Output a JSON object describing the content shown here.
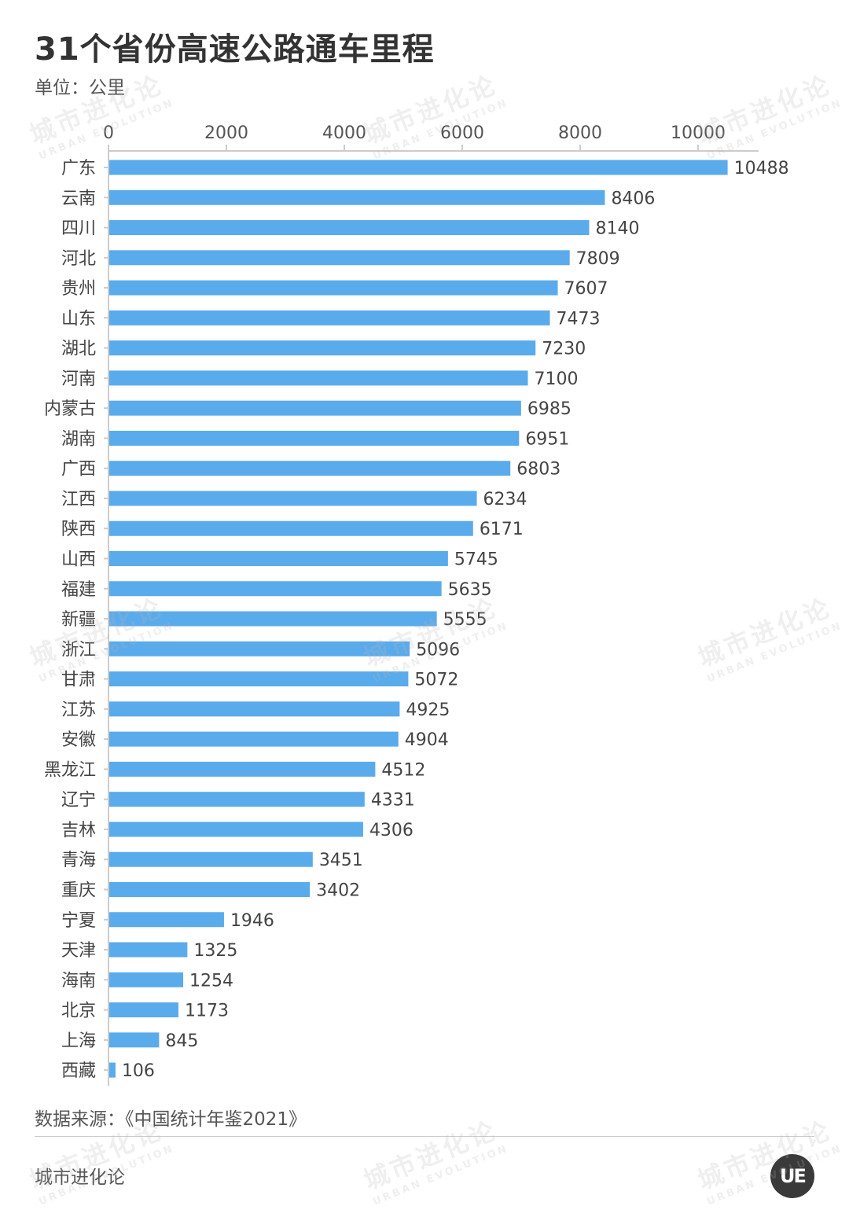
{
  "header": {
    "title": "31个省份高速公路通车里程",
    "unit": "单位：公里"
  },
  "footer": {
    "source": "数据来源：《中国统计年鉴2021》",
    "brand": "城市进化论",
    "logo_text": "UE"
  },
  "watermark": {
    "cn": "城市进化论",
    "en": "URBAN EVOLUTION"
  },
  "colors": {
    "bar": "#5AABEB",
    "axis": "#cccccc"
  },
  "chart_data": {
    "type": "bar",
    "orientation": "horizontal",
    "title": "31个省份高速公路通车里程",
    "xlabel": "",
    "ylabel": "",
    "unit": "单位：公里",
    "xlim": [
      0,
      11000
    ],
    "xticks": [
      0,
      2000,
      4000,
      6000,
      8000,
      10000
    ],
    "tick_labels": [
      "0",
      "2000",
      "4000",
      "6000",
      "8000",
      "10000"
    ],
    "axis_position": "top",
    "grid": false,
    "legend": "none",
    "categories": [
      "广东",
      "云南",
      "四川",
      "河北",
      "贵州",
      "山东",
      "湖北",
      "河南",
      "内蒙古",
      "湖南",
      "广西",
      "江西",
      "陕西",
      "山西",
      "福建",
      "新疆",
      "浙江",
      "甘肃",
      "江苏",
      "安徽",
      "黑龙江",
      "辽宁",
      "吉林",
      "青海",
      "重庆",
      "宁夏",
      "天津",
      "海南",
      "北京",
      "上海",
      "西藏"
    ],
    "values": [
      10488,
      8406,
      8140,
      7809,
      7607,
      7473,
      7230,
      7100,
      6985,
      6951,
      6803,
      6234,
      6171,
      5745,
      5635,
      5555,
      5096,
      5072,
      4925,
      4904,
      4512,
      4331,
      4306,
      3451,
      3402,
      1946,
      1325,
      1254,
      1173,
      845,
      106
    ],
    "data_labels": true
  }
}
